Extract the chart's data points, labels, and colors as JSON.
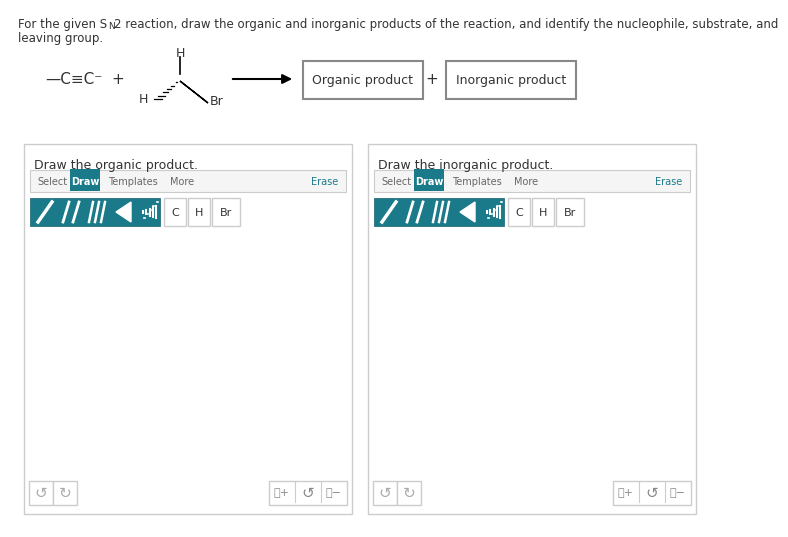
{
  "bg_color": "#ffffff",
  "teal_color": "#1a7a8a",
  "box_border": "#999999",
  "light_border": "#cccccc",
  "panel_border": "#cccccc",
  "erase_color": "#1a7a8a",
  "text_color": "#333333",
  "gray_text": "#aaaaaa",
  "top_text1": "For the given S",
  "top_sub_n": "N",
  "top_text2": "2 reaction, draw the organic and inorganic products of the reaction, and identify the nucleophile, substrate, and",
  "top_text3": "leaving group.",
  "panel1_title": "Draw the organic product.",
  "panel2_title": "Draw the inorganic product.",
  "organic_label": "Organic product",
  "inorganic_label": "Inorganic product",
  "select_label": "Select",
  "draw_label": "Draw",
  "templates_label": "Templates",
  "more_label": "More",
  "erase_label": "Erase",
  "c_label": "C",
  "h_label": "H",
  "br_label": "Br"
}
